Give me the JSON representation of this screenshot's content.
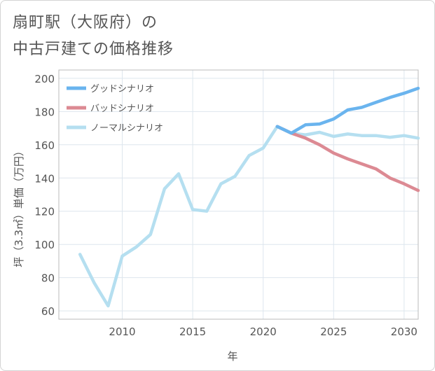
{
  "chart_data": {
    "type": "line",
    "title_lines": [
      "扇町駅（大阪府）の",
      "中古戸建ての価格推移"
    ],
    "xlabel": "年",
    "ylabel": "坪（3.3㎡）単価（万円）",
    "xlim": [
      2005.5,
      2031
    ],
    "ylim": [
      55,
      205
    ],
    "x_ticks": [
      2010,
      2015,
      2020,
      2025,
      2030
    ],
    "y_ticks": [
      60,
      80,
      100,
      120,
      140,
      160,
      180,
      200
    ],
    "grid": true,
    "legend_position": "top-left",
    "series": [
      {
        "name": "グッドシナリオ",
        "color": "#6ab4ee",
        "x": [
          2021,
          2022,
          2023,
          2024,
          2025,
          2026,
          2027,
          2028,
          2029,
          2030,
          2031
        ],
        "values": [
          171,
          167,
          172,
          172.5,
          175.5,
          181,
          182.5,
          185.5,
          188.5,
          191,
          194
        ]
      },
      {
        "name": "バッドシナリオ",
        "color": "#dc8a93",
        "x": [
          2021,
          2022,
          2023,
          2024,
          2025,
          2026,
          2027,
          2028,
          2029,
          2030,
          2031
        ],
        "values": [
          171,
          167,
          164,
          160,
          155,
          151.5,
          148.5,
          145.5,
          140,
          136.5,
          132.5
        ]
      },
      {
        "name": "ノーマルシナリオ",
        "color": "#b5dff0",
        "x": [
          2007,
          2008,
          2009,
          2010,
          2011,
          2012,
          2013,
          2014,
          2015,
          2016,
          2017,
          2018,
          2019,
          2020,
          2021,
          2022,
          2023,
          2024,
          2025,
          2026,
          2027,
          2028,
          2029,
          2030,
          2031
        ],
        "values": [
          94,
          77,
          63,
          93,
          98.5,
          106,
          133.5,
          142.5,
          121,
          120,
          136.5,
          141,
          153.5,
          158,
          171,
          167,
          166,
          167.5,
          165,
          166.5,
          165.5,
          165.5,
          164.5,
          165.5,
          164
        ]
      }
    ]
  }
}
